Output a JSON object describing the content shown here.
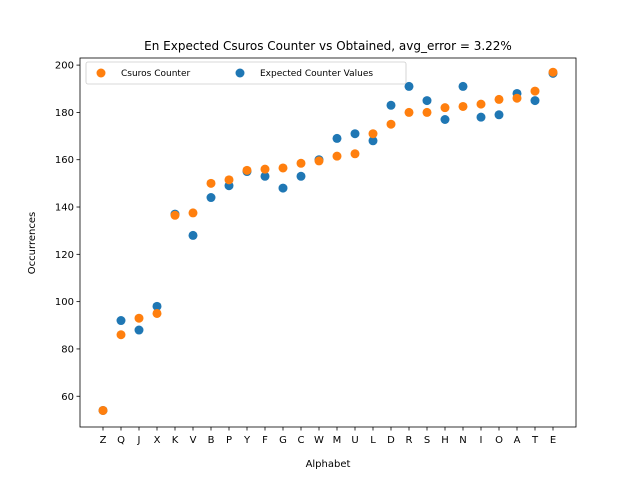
{
  "chart_data": {
    "type": "scatter",
    "title": "En Expected Csuros Counter vs Obtained, avg_error = 3.22%",
    "xlabel": "Alphabet",
    "ylabel": "Occurrences",
    "categories": [
      "Z",
      "Q",
      "J",
      "X",
      "K",
      "V",
      "B",
      "P",
      "Y",
      "F",
      "G",
      "C",
      "W",
      "M",
      "U",
      "L",
      "D",
      "R",
      "S",
      "H",
      "N",
      "I",
      "O",
      "A",
      "T",
      "E"
    ],
    "ylim": [
      47,
      203
    ],
    "yticks": [
      60,
      80,
      100,
      120,
      140,
      160,
      180,
      200
    ],
    "grid": false,
    "legend_position": "top-left",
    "series": [
      {
        "name": "Csuros Counter",
        "color": "#ff7f0e",
        "values": [
          54,
          86,
          93,
          95,
          136.5,
          137.5,
          150,
          151.5,
          155.5,
          156,
          156.5,
          158.5,
          159.5,
          161.5,
          162.5,
          171,
          175,
          180,
          180,
          182,
          182.5,
          183.5,
          185.5,
          186,
          189,
          197
        ]
      },
      {
        "name": "Expected Counter Values",
        "color": "#1f77b4",
        "values": [
          54,
          92,
          88,
          98,
          137,
          128,
          144,
          149,
          155,
          153,
          148,
          153,
          160,
          169,
          171,
          168,
          183,
          191,
          185,
          177,
          191,
          178,
          179,
          188,
          185,
          196.5
        ]
      }
    ]
  }
}
